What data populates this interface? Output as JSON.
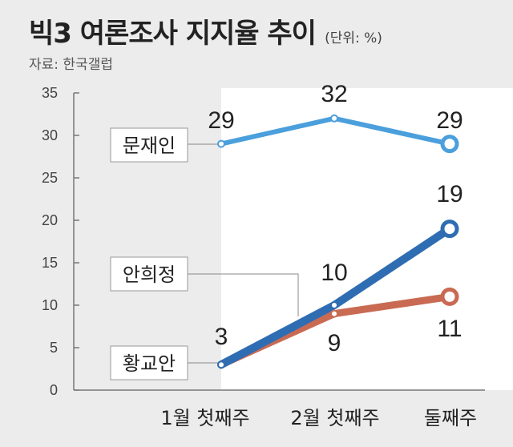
{
  "header": {
    "title": "빅3 여론조사 지지율 추이",
    "unit": "(단위: %)",
    "source": "자료: 한국갤럽"
  },
  "chart_data": {
    "type": "line",
    "categories": [
      "1월 첫째주",
      "2월 첫째주",
      "둘째주"
    ],
    "series": [
      {
        "name": "문재인",
        "values": [
          29,
          32,
          29
        ],
        "color": "#4a9fdc"
      },
      {
        "name": "안희정",
        "values": [
          3,
          10,
          19
        ],
        "color": "#2f6db3"
      },
      {
        "name": "황교안",
        "values": [
          3,
          9,
          11
        ],
        "color": "#c96a52"
      }
    ],
    "ylim": [
      0,
      35
    ],
    "yticks": [
      0,
      5,
      10,
      15,
      20,
      25,
      30,
      35
    ],
    "xlabel": "",
    "ylabel": "",
    "grid": false,
    "legend": "inline labels"
  }
}
